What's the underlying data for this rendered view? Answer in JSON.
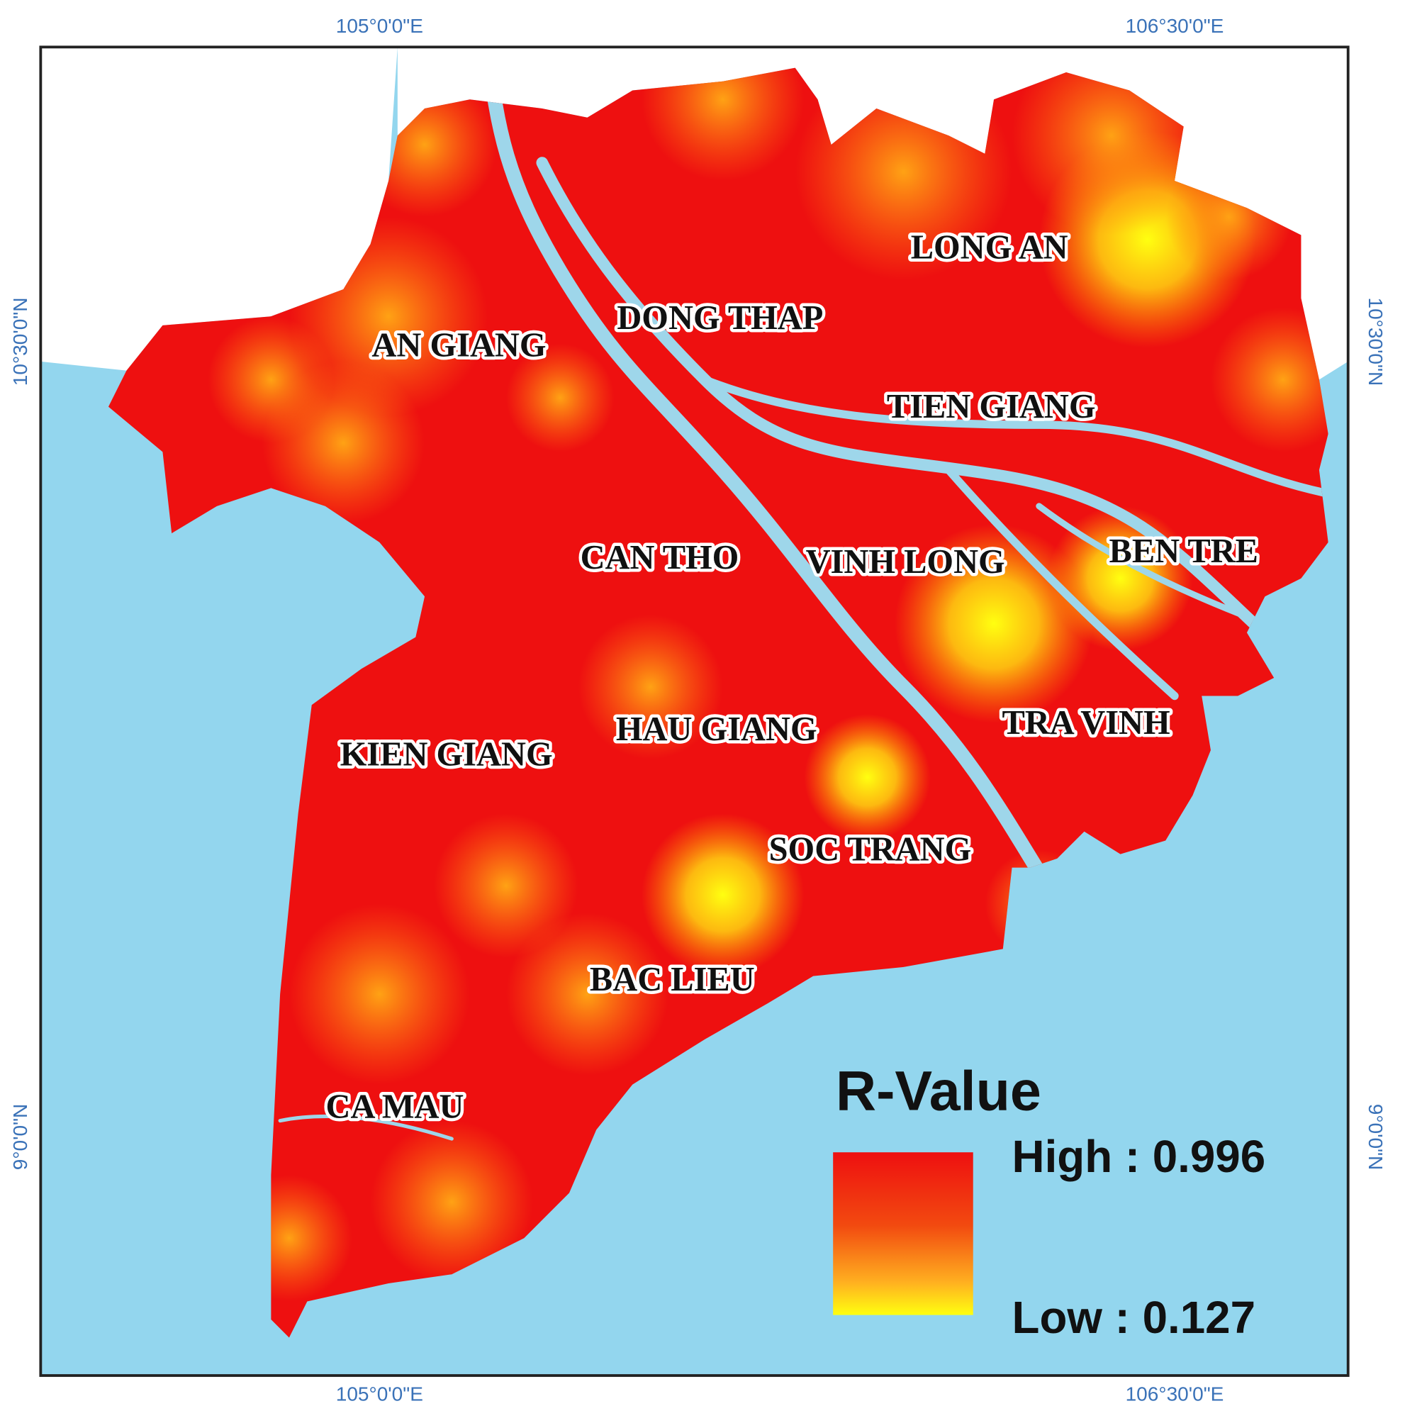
{
  "map": {
    "graticule": {
      "top": [
        "105°0'0\"E",
        "106°30'0\"E"
      ],
      "bottom": [
        "105°0'0\"E",
        "106°30'0\"E"
      ],
      "left": [
        "10°30'0\"N",
        "9°0'0\"N"
      ],
      "right": [
        "10°30'0\"N",
        "9°0'0\"N"
      ]
    },
    "provinces": [
      "LONG AN",
      "DONG THAP",
      "AN GIANG",
      "TIEN GIANG",
      "CAN THO",
      "VINH LONG",
      "BEN TRE",
      "HAU GIANG",
      "KIEN GIANG",
      "TRA VINH",
      "SOC TRANG",
      "BAC LIEU",
      "CA MAU"
    ],
    "legend": {
      "title": "R-Value",
      "high_label": "High : 0.996",
      "low_label": "Low : 0.127"
    }
  }
}
